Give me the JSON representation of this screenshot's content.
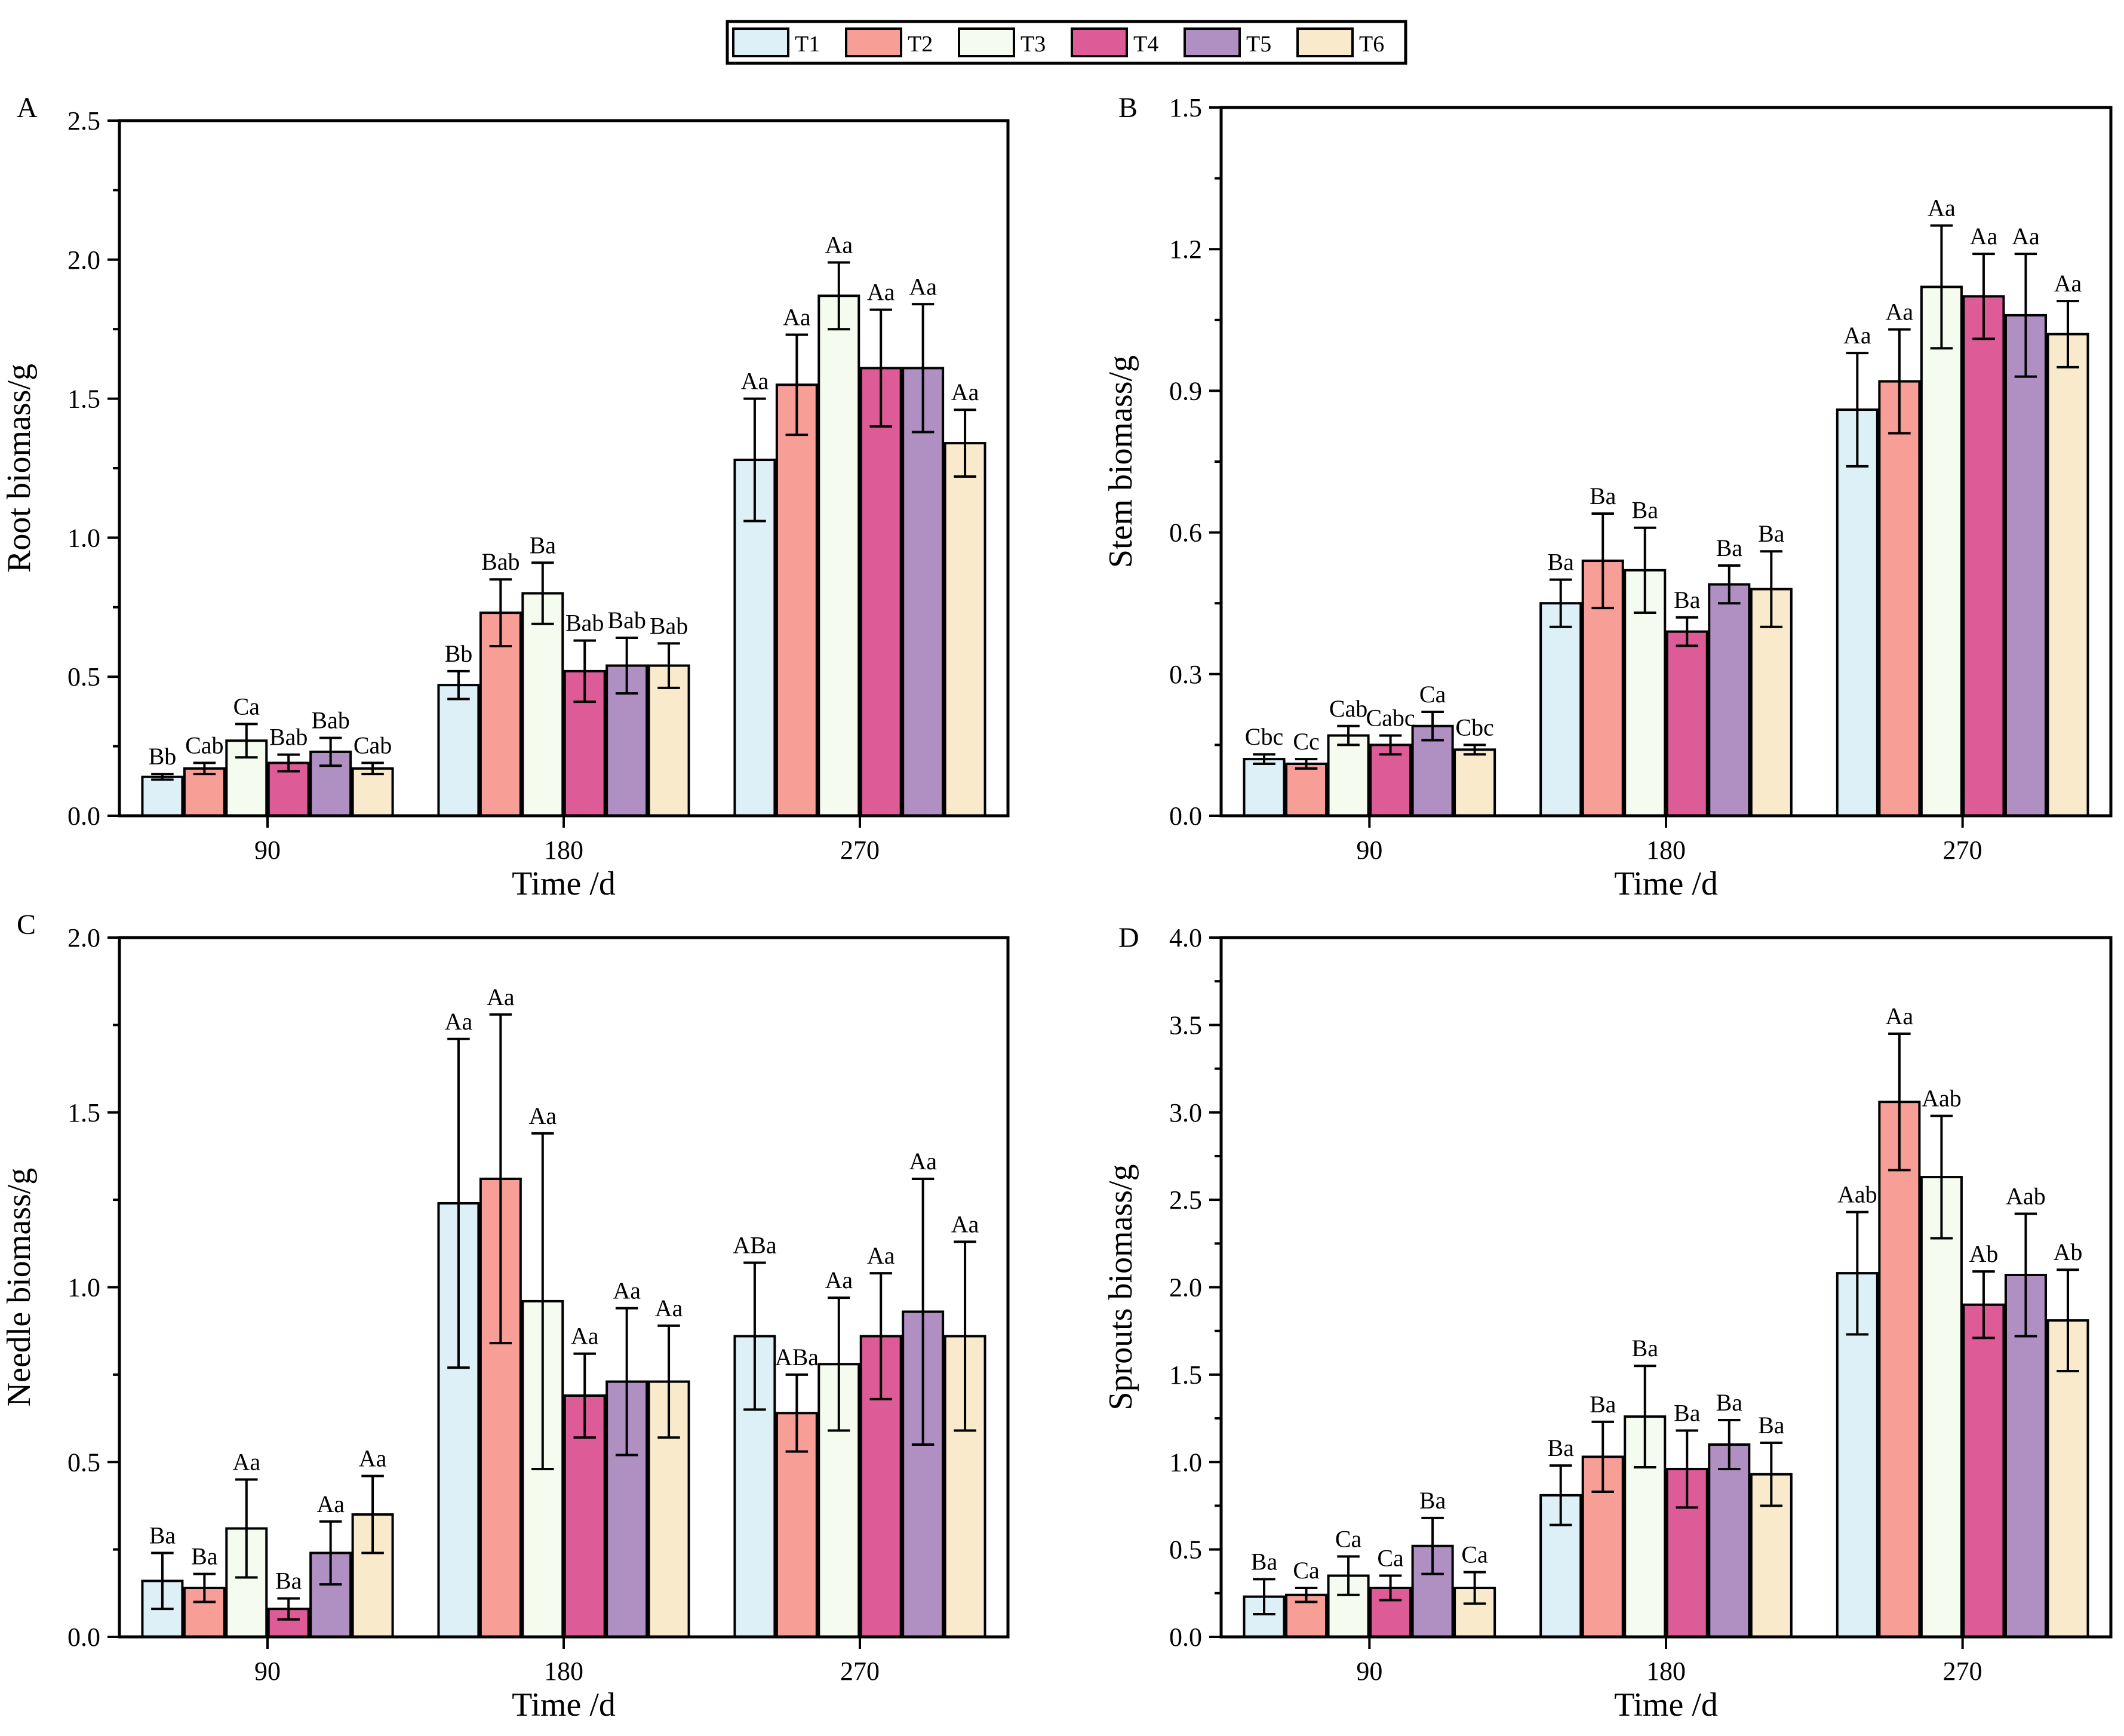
{
  "legend": {
    "items": [
      {
        "name": "T1",
        "color": "#DDF0F7"
      },
      {
        "name": "T2",
        "color": "#F79E97"
      },
      {
        "name": "T3",
        "color": "#F6FBEF"
      },
      {
        "name": "T4",
        "color": "#DD5C97"
      },
      {
        "name": "T5",
        "color": "#B08FC3"
      },
      {
        "name": "T6",
        "color": "#F9EACB"
      }
    ]
  },
  "chart_data": [
    {
      "panel_label": "A",
      "type": "bar",
      "xlabel": "Time /d",
      "ylabel": "Root biomass/g",
      "categories": [
        "90",
        "180",
        "270"
      ],
      "ylim": [
        0,
        2.5
      ],
      "yticks": [
        0.0,
        0.5,
        1.0,
        1.5,
        2.0,
        2.5
      ],
      "tick_labels": [
        "0.0",
        "0.5",
        "1.0",
        "1.5",
        "2.0",
        "2.5"
      ],
      "series": [
        {
          "name": "T1",
          "values": [
            0.14,
            0.47,
            1.28
          ],
          "errors": [
            0.01,
            0.05,
            0.22
          ],
          "letters": [
            "Bb",
            "Bb",
            "Aa"
          ]
        },
        {
          "name": "T2",
          "values": [
            0.17,
            0.73,
            1.55
          ],
          "errors": [
            0.02,
            0.12,
            0.18
          ],
          "letters": [
            "Cab",
            "Bab",
            "Aa"
          ]
        },
        {
          "name": "T3",
          "values": [
            0.27,
            0.8,
            1.87
          ],
          "errors": [
            0.06,
            0.11,
            0.12
          ],
          "letters": [
            "Ca",
            "Ba",
            "Aa"
          ]
        },
        {
          "name": "T4",
          "values": [
            0.19,
            0.52,
            1.61
          ],
          "errors": [
            0.03,
            0.11,
            0.21
          ],
          "letters": [
            "Bab",
            "Bab",
            "Aa"
          ]
        },
        {
          "name": "T5",
          "values": [
            0.23,
            0.54,
            1.61
          ],
          "errors": [
            0.05,
            0.1,
            0.23
          ],
          "letters": [
            "Bab",
            "Bab",
            "Aa"
          ]
        },
        {
          "name": "T6",
          "values": [
            0.17,
            0.54,
            1.34
          ],
          "errors": [
            0.02,
            0.08,
            0.12
          ],
          "letters": [
            "Cab",
            "Bab",
            "Aa"
          ]
        }
      ]
    },
    {
      "panel_label": "B",
      "type": "bar",
      "xlabel": "Time /d",
      "ylabel": "Stem biomass/g",
      "categories": [
        "90",
        "180",
        "270"
      ],
      "ylim": [
        0,
        1.5
      ],
      "yticks": [
        0.0,
        0.3,
        0.6,
        0.9,
        1.2,
        1.5
      ],
      "tick_labels": [
        "0.0",
        "0.3",
        "0.6",
        "0.9",
        "1.2",
        "1.5"
      ],
      "series": [
        {
          "name": "T1",
          "values": [
            0.12,
            0.45,
            0.86
          ],
          "errors": [
            0.01,
            0.05,
            0.12
          ],
          "letters": [
            "Cbc",
            "Ba",
            "Aa"
          ]
        },
        {
          "name": "T2",
          "values": [
            0.11,
            0.54,
            0.92
          ],
          "errors": [
            0.01,
            0.1,
            0.11
          ],
          "letters": [
            "Cc",
            "Ba",
            "Aa"
          ]
        },
        {
          "name": "T3",
          "values": [
            0.17,
            0.52,
            1.12
          ],
          "errors": [
            0.02,
            0.09,
            0.13
          ],
          "letters": [
            "Cab",
            "Ba",
            "Aa"
          ]
        },
        {
          "name": "T4",
          "values": [
            0.15,
            0.39,
            1.1
          ],
          "errors": [
            0.02,
            0.03,
            0.09
          ],
          "letters": [
            "Cabc",
            "Ba",
            "Aa"
          ]
        },
        {
          "name": "T5",
          "values": [
            0.19,
            0.49,
            1.06
          ],
          "errors": [
            0.03,
            0.04,
            0.13
          ],
          "letters": [
            "Ca",
            "Ba",
            "Aa"
          ]
        },
        {
          "name": "T6",
          "values": [
            0.14,
            0.48,
            1.02
          ],
          "errors": [
            0.01,
            0.08,
            0.07
          ],
          "letters": [
            "Cbc",
            "Ba",
            "Aa"
          ]
        }
      ]
    },
    {
      "panel_label": "C",
      "type": "bar",
      "xlabel": "Time /d",
      "ylabel": "Needle biomass/g",
      "categories": [
        "90",
        "180",
        "270"
      ],
      "ylim": [
        0,
        2.0
      ],
      "yticks": [
        0.0,
        0.5,
        1.0,
        1.5,
        2.0
      ],
      "tick_labels": [
        "0.0",
        "0.5",
        "1.0",
        "1.5",
        "2.0"
      ],
      "series": [
        {
          "name": "T1",
          "values": [
            0.16,
            1.24,
            0.86
          ],
          "errors": [
            0.08,
            0.47,
            0.21
          ],
          "letters": [
            "Ba",
            "Aa",
            "ABa"
          ]
        },
        {
          "name": "T2",
          "values": [
            0.14,
            1.31,
            0.64
          ],
          "errors": [
            0.04,
            0.47,
            0.11
          ],
          "letters": [
            "Ba",
            "Aa",
            "ABa"
          ]
        },
        {
          "name": "T3",
          "values": [
            0.31,
            0.96,
            0.78
          ],
          "errors": [
            0.14,
            0.48,
            0.19
          ],
          "letters": [
            "Aa",
            "Aa",
            "Aa"
          ]
        },
        {
          "name": "T4",
          "values": [
            0.08,
            0.69,
            0.86
          ],
          "errors": [
            0.03,
            0.12,
            0.18
          ],
          "letters": [
            "Ba",
            "Aa",
            "Aa"
          ]
        },
        {
          "name": "T5",
          "values": [
            0.24,
            0.73,
            0.93
          ],
          "errors": [
            0.09,
            0.21,
            0.38
          ],
          "letters": [
            "Aa",
            "Aa",
            "Aa"
          ]
        },
        {
          "name": "T6",
          "values": [
            0.35,
            0.73,
            0.86
          ],
          "errors": [
            0.11,
            0.16,
            0.27
          ],
          "letters": [
            "Aa",
            "Aa",
            "Aa"
          ]
        }
      ]
    },
    {
      "panel_label": "D",
      "type": "bar",
      "xlabel": "Time /d",
      "ylabel": "Sprouts biomass/g",
      "categories": [
        "90",
        "180",
        "270"
      ],
      "ylim": [
        0,
        4.0
      ],
      "yticks": [
        0.0,
        0.5,
        1.0,
        1.5,
        2.0,
        2.5,
        3.0,
        3.5,
        4.0
      ],
      "tick_labels": [
        "0.0",
        "0.5",
        "1.0",
        "1.5",
        "2.0",
        "2.5",
        "3.0",
        "3.5",
        "4.0"
      ],
      "series": [
        {
          "name": "T1",
          "values": [
            0.23,
            0.81,
            2.08
          ],
          "errors": [
            0.1,
            0.17,
            0.35
          ],
          "letters": [
            "Ba",
            "Ba",
            "Aab"
          ]
        },
        {
          "name": "T2",
          "values": [
            0.24,
            1.03,
            3.06
          ],
          "errors": [
            0.04,
            0.2,
            0.39
          ],
          "letters": [
            "Ca",
            "Ba",
            "Aa"
          ]
        },
        {
          "name": "T3",
          "values": [
            0.35,
            1.26,
            2.63
          ],
          "errors": [
            0.11,
            0.29,
            0.35
          ],
          "letters": [
            "Ca",
            "Ba",
            "Aab"
          ]
        },
        {
          "name": "T4",
          "values": [
            0.28,
            0.96,
            1.9
          ],
          "errors": [
            0.07,
            0.22,
            0.19
          ],
          "letters": [
            "Ca",
            "Ba",
            "Ab"
          ]
        },
        {
          "name": "T5",
          "values": [
            0.52,
            1.1,
            2.07
          ],
          "errors": [
            0.16,
            0.14,
            0.35
          ],
          "letters": [
            "Ba",
            "Ba",
            "Aab"
          ]
        },
        {
          "name": "T6",
          "values": [
            0.28,
            0.93,
            1.81
          ],
          "errors": [
            0.09,
            0.18,
            0.29
          ],
          "letters": [
            "Ca",
            "Ba",
            "Ab"
          ]
        }
      ]
    }
  ]
}
